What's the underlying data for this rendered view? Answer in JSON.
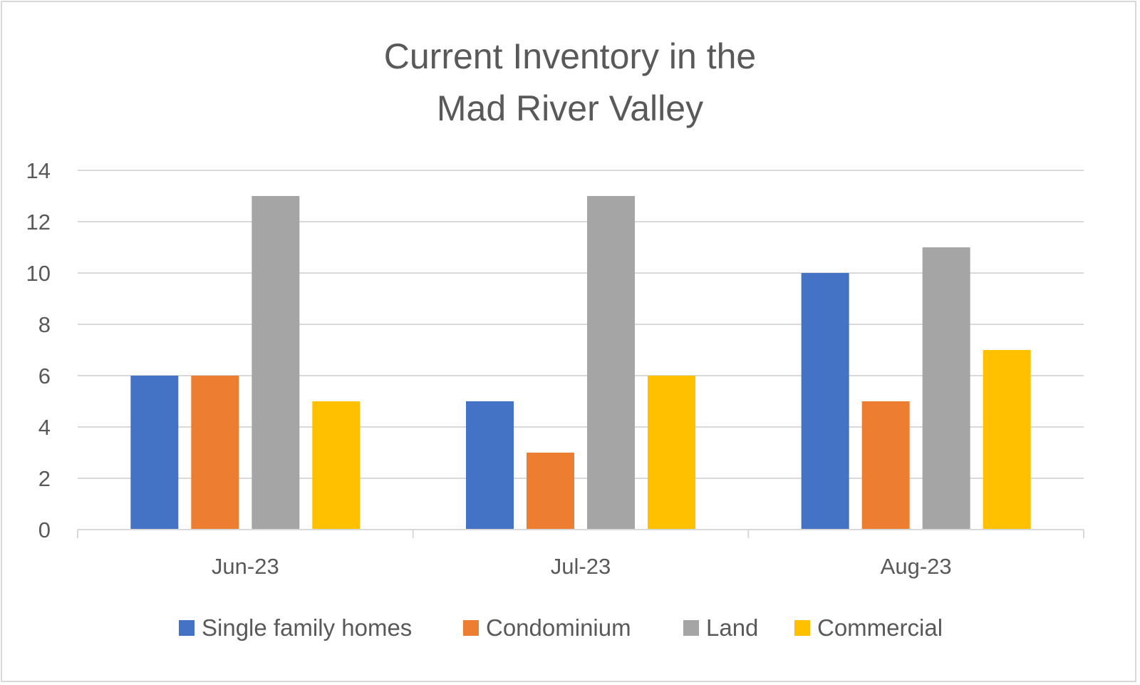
{
  "chart_data": {
    "type": "bar",
    "title": [
      "Current Inventory in the",
      "Mad River Valley"
    ],
    "categories": [
      "Jun-23",
      "Jul-23",
      "Aug-23"
    ],
    "series": [
      {
        "name": "Single family homes",
        "values": [
          6,
          5,
          10
        ],
        "color": "#4472c4"
      },
      {
        "name": "Condominium",
        "values": [
          6,
          3,
          5
        ],
        "color": "#ed7d31"
      },
      {
        "name": "Land",
        "values": [
          13,
          13,
          11
        ],
        "color": "#a5a5a5"
      },
      {
        "name": "Commercial",
        "values": [
          5,
          6,
          7
        ],
        "color": "#ffc000"
      }
    ],
    "ylim": [
      0,
      14
    ],
    "yticks": [
      "0",
      "2",
      "4",
      "6",
      "8",
      "10",
      "12",
      "14"
    ],
    "grid": true,
    "legend_position": "bottom",
    "colors": {
      "grid": "#d9d9d9",
      "text": "#595959",
      "frame": "#d9d9d9"
    }
  }
}
